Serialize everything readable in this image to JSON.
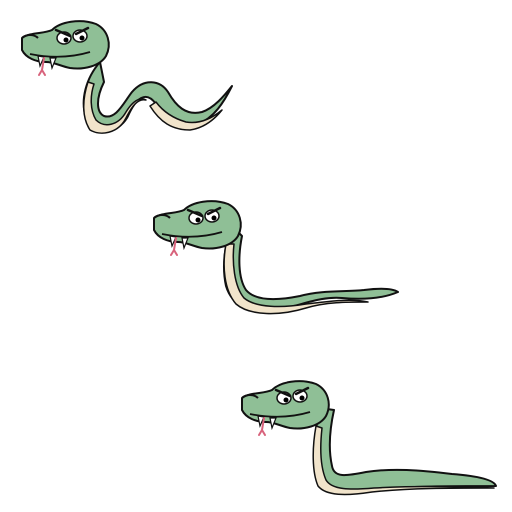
{
  "sprite_sheet": {
    "subject": "snake",
    "frame_count": 3,
    "colors": {
      "body": "#8fbf96",
      "belly": "#f1e4cb",
      "outline": "#111111",
      "eye_white": "#ffffff",
      "pupil": "#000000",
      "tongue": "#f2b7c4",
      "fang": "#ffffff",
      "background": "#ffffff"
    },
    "frames": [
      {
        "pose": "coiled-zigzag"
      },
      {
        "pose": "half-extended"
      },
      {
        "pose": "fully-extended"
      }
    ]
  }
}
